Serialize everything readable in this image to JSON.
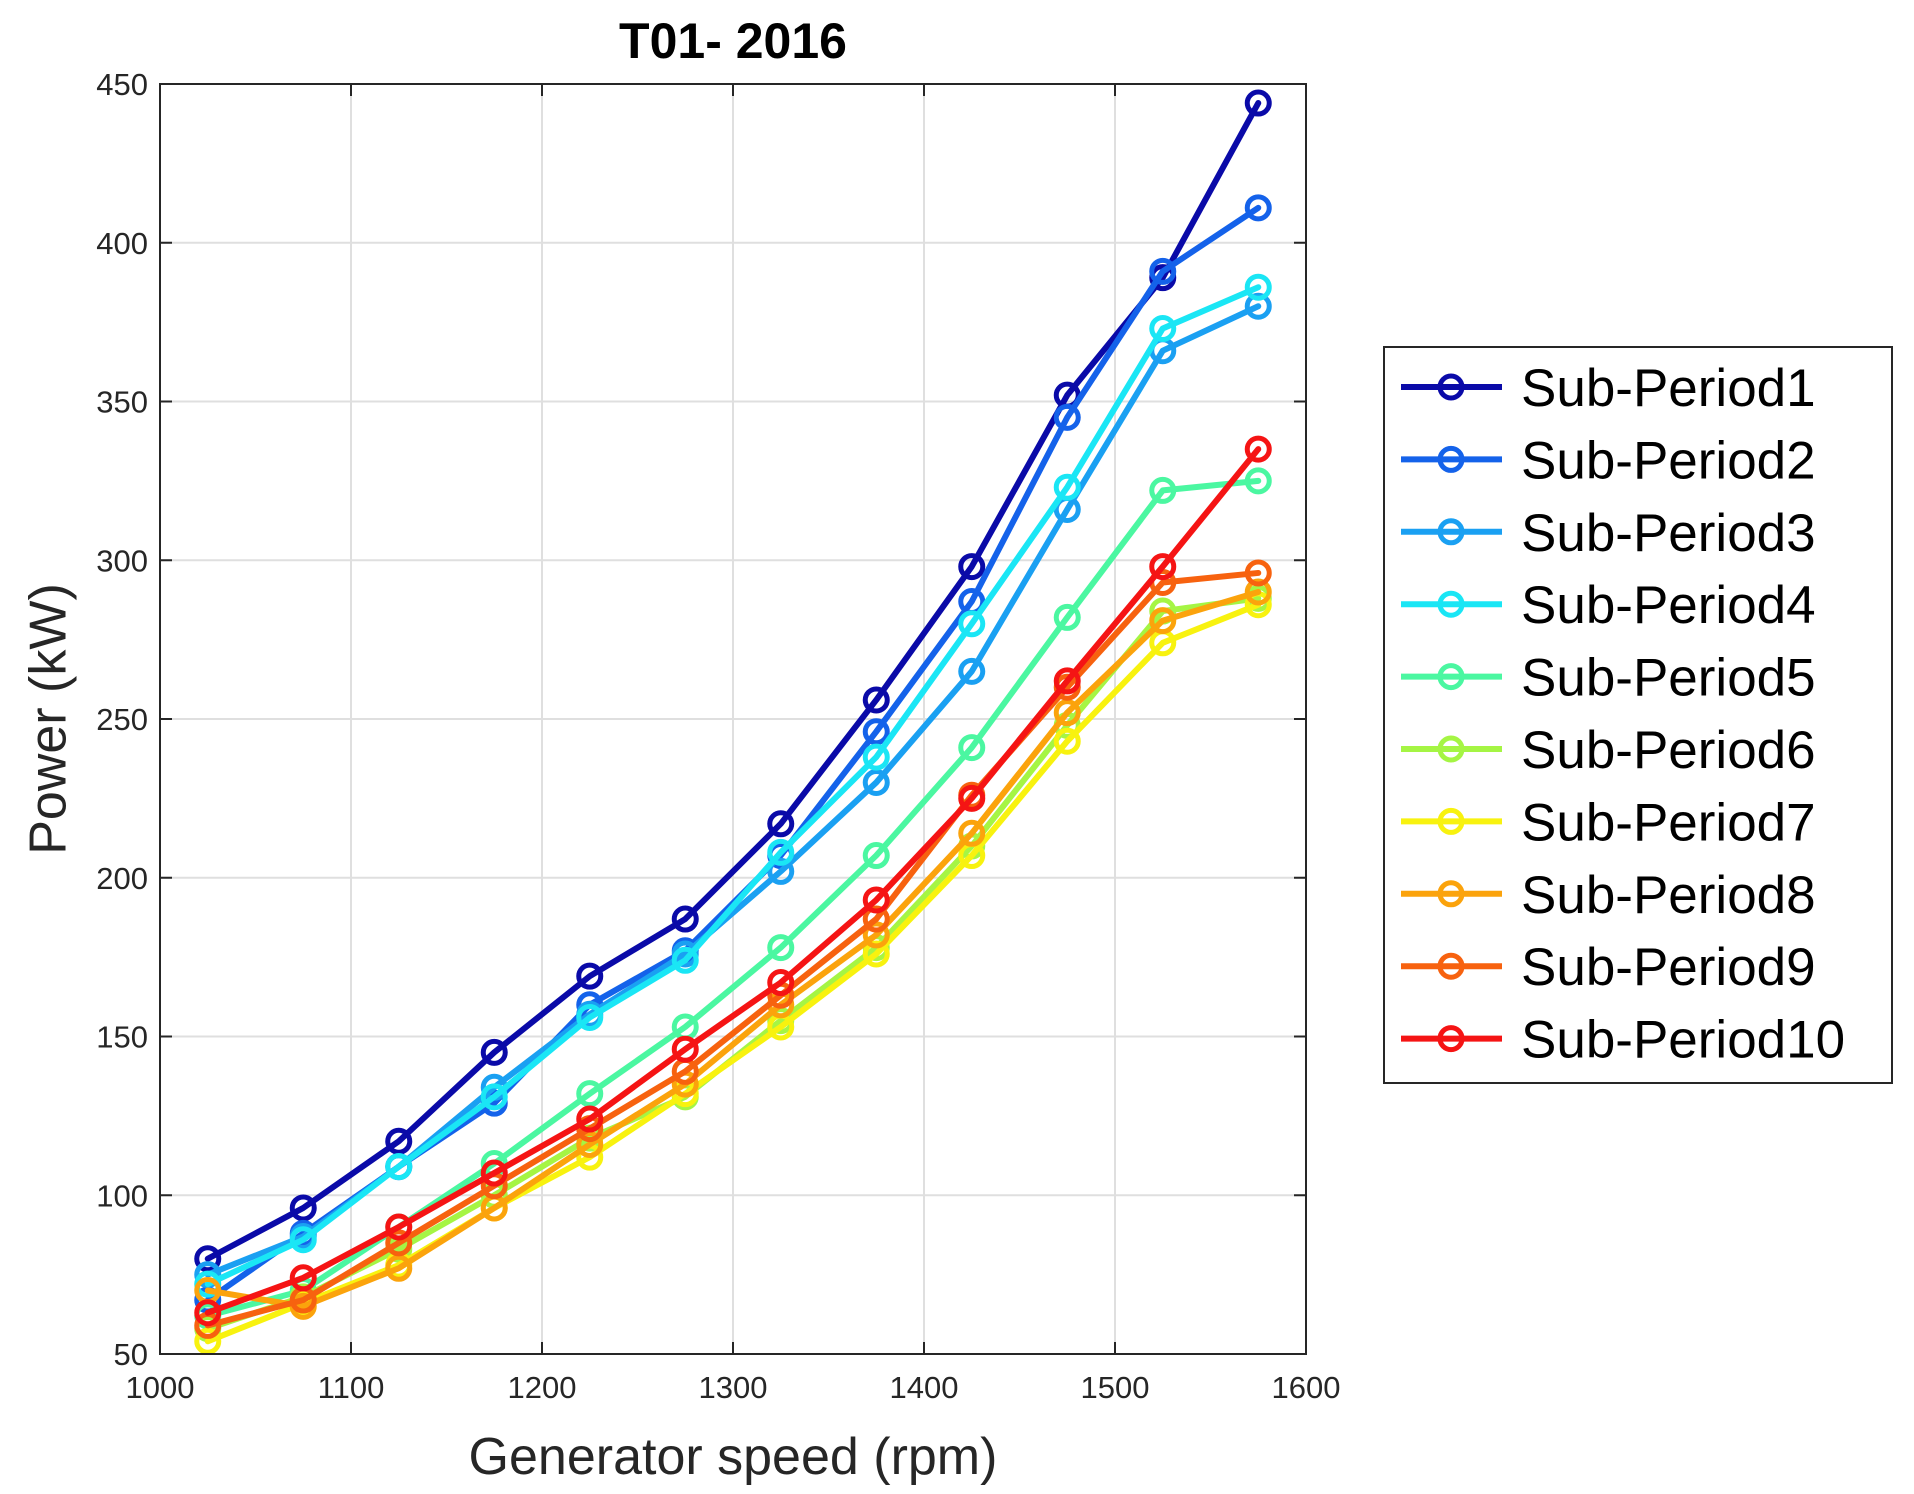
{
  "chart_data": {
    "type": "line",
    "title": "T01- 2016",
    "xlabel": "Generator speed (rpm)",
    "ylabel": "Power (kW)",
    "xlim": [
      1000,
      1600
    ],
    "ylim": [
      50,
      450
    ],
    "xticks": [
      1000,
      1100,
      1200,
      1300,
      1400,
      1500,
      1600
    ],
    "yticks": [
      50,
      100,
      150,
      200,
      250,
      300,
      350,
      400,
      450
    ],
    "grid": true,
    "legend_position": "outside-right",
    "x": [
      1025,
      1075,
      1125,
      1175,
      1225,
      1275,
      1325,
      1375,
      1425,
      1475,
      1525,
      1575
    ],
    "series": [
      {
        "name": "Sub-Period1",
        "color": "#0a0aa8",
        "values": [
          80,
          96,
          117,
          145,
          169,
          187,
          217,
          256,
          298,
          352,
          389,
          444
        ]
      },
      {
        "name": "Sub-Period2",
        "color": "#1462ea",
        "values": [
          67,
          88,
          109,
          129,
          160,
          177,
          207,
          246,
          287,
          345,
          391,
          411
        ]
      },
      {
        "name": "Sub-Period3",
        "color": "#1aa0f2",
        "values": [
          75,
          87,
          109,
          134,
          157,
          176,
          202,
          230,
          265,
          316,
          366,
          380
        ]
      },
      {
        "name": "Sub-Period4",
        "color": "#1ae6f5",
        "values": [
          72,
          86,
          109,
          131,
          156,
          174,
          208,
          238,
          280,
          323,
          373,
          386
        ]
      },
      {
        "name": "Sub-Period5",
        "color": "#4bf7a1",
        "values": [
          62,
          70,
          90,
          110,
          132,
          153,
          178,
          207,
          241,
          282,
          322,
          325
        ]
      },
      {
        "name": "Sub-Period6",
        "color": "#a5f544",
        "values": [
          58,
          68,
          83,
          100,
          118,
          131,
          155,
          178,
          210,
          248,
          284,
          288
        ]
      },
      {
        "name": "Sub-Period7",
        "color": "#f8f20f",
        "values": [
          54,
          66,
          78,
          96,
          112,
          132,
          153,
          176,
          207,
          243,
          274,
          286
        ]
      },
      {
        "name": "Sub-Period8",
        "color": "#fba30c",
        "values": [
          70,
          65,
          77,
          96,
          116,
          135,
          160,
          182,
          214,
          252,
          281,
          290
        ]
      },
      {
        "name": "Sub-Period9",
        "color": "#f7620f",
        "values": [
          59,
          67,
          85,
          103,
          121,
          139,
          163,
          187,
          226,
          260,
          293,
          296
        ]
      },
      {
        "name": "Sub-Period10",
        "color": "#f51414",
        "values": [
          63,
          74,
          90,
          107,
          124,
          146,
          167,
          193,
          225,
          262,
          298,
          335
        ]
      }
    ]
  }
}
